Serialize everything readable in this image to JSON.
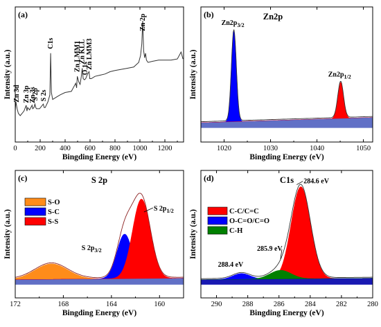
{
  "chart_data": [
    {
      "type": "line",
      "panel_label": "(a)",
      "title": "",
      "xlabel": "Bingding Energy (eV)",
      "ylabel": "Intensity (a.u.)",
      "xlim": [
        0,
        1350
      ],
      "xticks": [
        0,
        200,
        400,
        600,
        800,
        1000,
        1200
      ],
      "yticks": [],
      "series": [
        {
          "color": "#333333",
          "x": [
            0,
            5,
            10,
            15,
            25,
            40,
            70,
            88,
            94,
            100,
            115,
            135,
            140,
            150,
            158,
            165,
            170,
            195,
            225,
            232,
            240,
            262,
            278,
            284,
            290,
            300,
            330,
            360,
            400,
            450,
            470,
            485,
            492,
            498,
            510,
            520,
            530,
            537,
            545,
            555,
            565,
            580,
            592,
            598,
            610,
            640,
            680,
            720,
            760,
            800,
            850,
            900,
            950,
            990,
            1005,
            1015,
            1022,
            1030,
            1038,
            1045,
            1052,
            1065,
            1100,
            1150,
            1200,
            1250,
            1300,
            1330,
            1345
          ],
          "y": [
            0.22,
            0.3,
            0.27,
            0.24,
            0.2,
            0.18,
            0.22,
            0.27,
            0.22,
            0.25,
            0.23,
            0.27,
            0.24,
            0.25,
            0.28,
            0.25,
            0.24,
            0.24,
            0.28,
            0.25,
            0.25,
            0.3,
            0.36,
            0.72,
            0.38,
            0.32,
            0.34,
            0.36,
            0.38,
            0.39,
            0.43,
            0.46,
            0.42,
            0.52,
            0.47,
            0.45,
            0.52,
            0.59,
            0.5,
            0.49,
            0.5,
            0.54,
            0.56,
            0.5,
            0.5,
            0.52,
            0.53,
            0.54,
            0.56,
            0.57,
            0.58,
            0.59,
            0.6,
            0.64,
            0.7,
            0.8,
            1.0,
            0.74,
            0.68,
            0.72,
            0.66,
            0.64,
            0.65,
            0.66,
            0.66,
            0.66,
            0.67,
            0.73,
            0.67
          ]
        }
      ],
      "annotations": [
        {
          "text": "Zn 3d",
          "x": 12
        },
        {
          "text": "Zn 3p",
          "x": 90
        },
        {
          "text": "Zn 3s",
          "x": 138
        },
        {
          "text": "S 2p",
          "x": 160
        },
        {
          "text": "S 2s",
          "x": 228
        },
        {
          "text": "C1s",
          "x": 284
        },
        {
          "text": "Zn LMM1",
          "x": 498
        },
        {
          "text": "Zn KLL",
          "x": 537
        },
        {
          "text": "O 1s",
          "x": 560
        },
        {
          "text": "Zn LMM3",
          "x": 594
        },
        {
          "text": "Zn 2p",
          "x": 1022
        }
      ]
    },
    {
      "type": "area",
      "panel_label": "(b)",
      "title": "Zn2p",
      "xlabel": "Bingding Energy (eV)",
      "ylabel": "Intensity (a.u.)",
      "xlim": [
        1015,
        1052
      ],
      "xticks": [
        1020,
        1030,
        1040,
        1050
      ],
      "yticks": [],
      "series": [
        {
          "color": "#0000ff",
          "peak": 1022.1,
          "fwhm": 1.25,
          "height": 0.88
        },
        {
          "color": "#ff0000",
          "peak": 1045.1,
          "fwhm": 1.45,
          "height": 0.35
        }
      ],
      "annotations": [
        {
          "text": "Zn2p",
          "sub": "3/2",
          "x": 1022.1
        },
        {
          "text": "Zn2p",
          "sub": "1/2",
          "x": 1045.1
        }
      ]
    },
    {
      "type": "area",
      "panel_label": "(c)",
      "title": "S 2p",
      "xlabel": "Bingding Energy (eV)",
      "ylabel": "Intensity (a.u.)",
      "xlim": [
        172,
        158
      ],
      "xticks": [
        172,
        168,
        164,
        160
      ],
      "yticks": [],
      "legend": {
        "placement": "top-left",
        "entries": [
          "S-O",
          "S-C",
          "S-S"
        ]
      },
      "series": [
        {
          "name": "S-O",
          "color": "#ff8c1a",
          "peak": 169.0,
          "fwhm": 3.2,
          "height": 0.16
        },
        {
          "name": "S-C",
          "color": "#0000ff",
          "peak": 162.9,
          "fwhm": 1.5,
          "height": 0.46
        },
        {
          "name": "S-S",
          "color": "#ff0000",
          "peak": 161.5,
          "fwhm": 1.75,
          "height": 0.82
        }
      ],
      "annotations": [
        {
          "text": "S 2p",
          "sub": "1/2",
          "x": 160.6
        },
        {
          "text": "S 2p",
          "sub": "3/2",
          "x": 163.6
        }
      ]
    },
    {
      "type": "area",
      "panel_label": "(d)",
      "title": "C1s",
      "xlabel": "Bingding Energy (eV)",
      "ylabel": "Intensity (a.u.)",
      "xlim": [
        291,
        280
      ],
      "xticks": [
        290,
        288,
        286,
        284,
        282,
        280
      ],
      "yticks": [],
      "legend": {
        "placement": "top-left",
        "entries": [
          "C-C/C=C",
          "O-C=O/C=O",
          "C-H"
        ]
      },
      "series": [
        {
          "name": "C-C/C=C",
          "color": "#ff0000",
          "peak": 284.6,
          "fwhm": 1.45,
          "height": 0.95
        },
        {
          "name": "O-C=O/C=O",
          "color": "#0000ff",
          "peak": 288.4,
          "fwhm": 1.3,
          "height": 0.06
        },
        {
          "name": "C-H",
          "color": "#008000",
          "peak": 285.9,
          "fwhm": 1.6,
          "height": 0.09
        }
      ],
      "annotations": [
        {
          "text": "284.6 eV",
          "x": 284.6
        },
        {
          "text": "285.9 eV",
          "x": 285.9
        },
        {
          "text": "288.4 eV",
          "x": 288.4
        }
      ]
    }
  ]
}
